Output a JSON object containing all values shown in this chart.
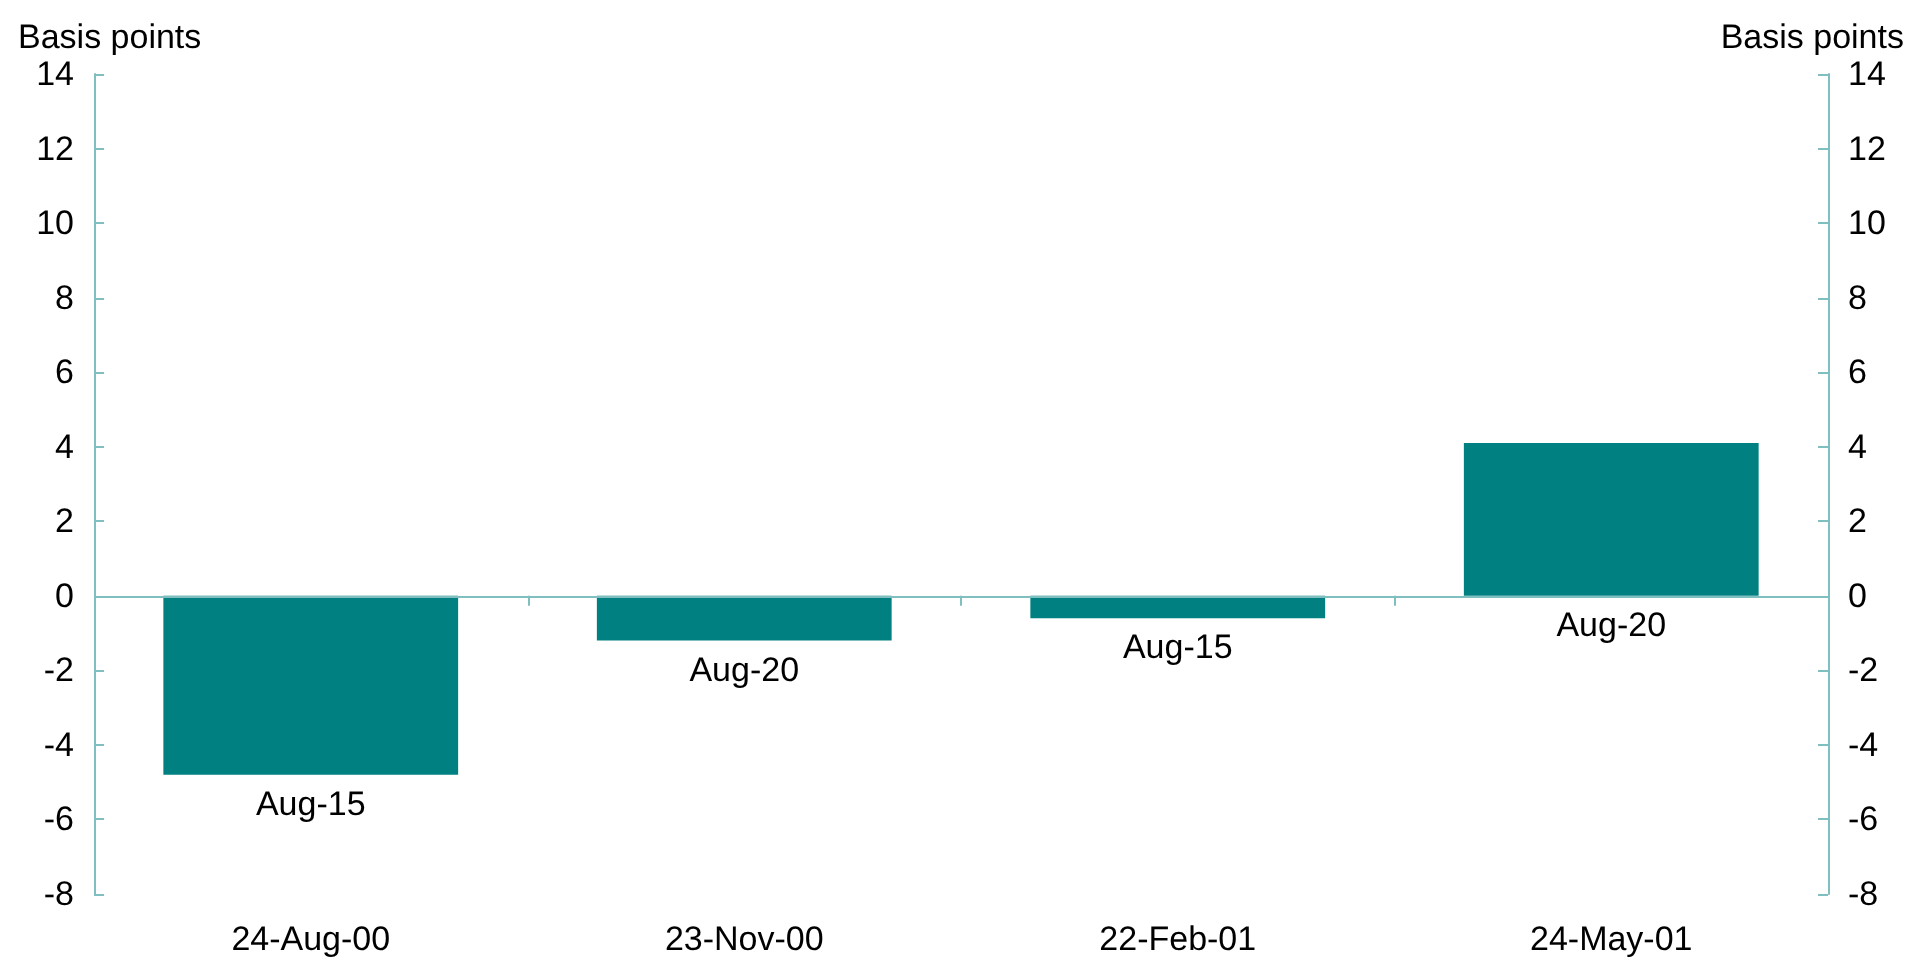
{
  "chart_data": {
    "type": "bar",
    "ylabel": "Basis points",
    "y2label": "Basis points",
    "categories": [
      "24-Aug-00",
      "23-Nov-00",
      "22-Feb-01",
      "24-May-01"
    ],
    "series": [
      {
        "color": "#008080",
        "values": [
          -4.8,
          -1.2,
          -0.6,
          4.1
        ]
      }
    ],
    "ylim": [
      -8,
      14
    ],
    "yticks": [
      -8,
      -6,
      -4,
      -2,
      0,
      2,
      4,
      6,
      8,
      10,
      12,
      14
    ],
    "y2lim": [
      -8,
      14
    ],
    "y2ticks": [
      -8,
      -6,
      -4,
      -2,
      0,
      2,
      4,
      6,
      8,
      10,
      12,
      14
    ],
    "annotations": [
      {
        "text": "Aug-15",
        "x": "24-Aug-00",
        "y": -4.8
      },
      {
        "text": "Aug-20",
        "x": "23-Nov-00",
        "y": -1.2
      },
      {
        "text": "Aug-15",
        "x": "22-Feb-01",
        "y": -0.6
      },
      {
        "text": "Aug-20",
        "x": "24-May-01",
        "y": 0
      }
    ],
    "ref_lines": [
      {
        "axis": "y",
        "value": 0,
        "color": "#7fbfbf"
      }
    ],
    "grid": false
  }
}
